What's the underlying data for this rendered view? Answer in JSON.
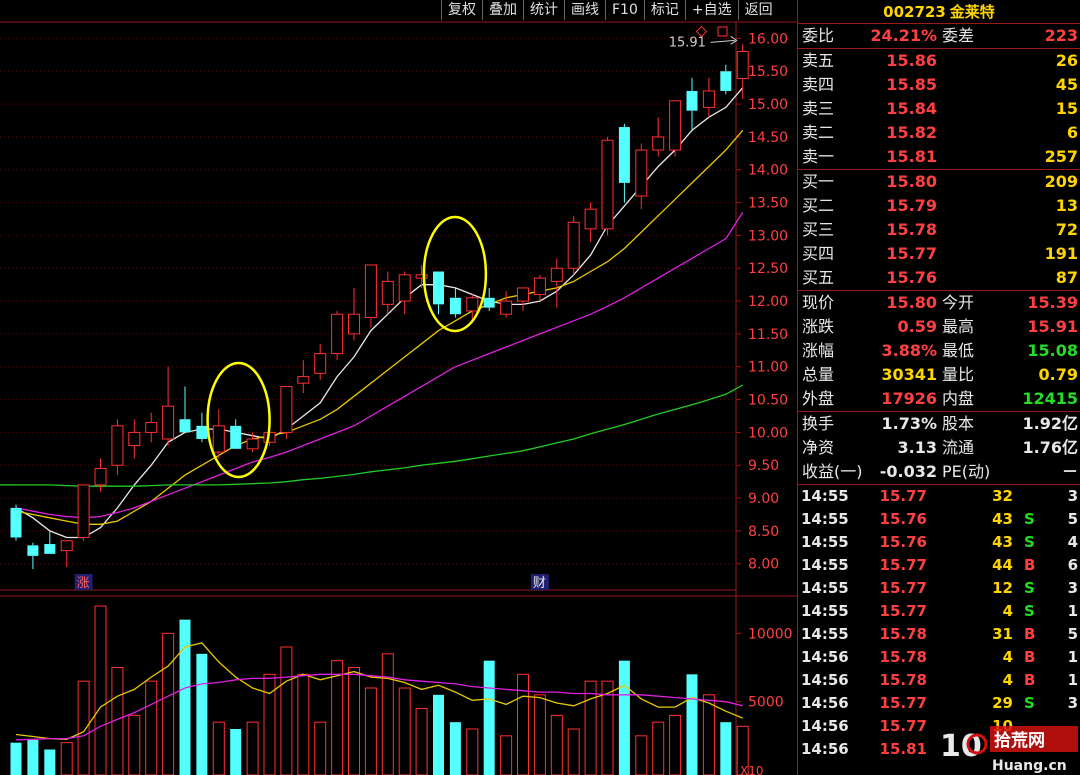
{
  "toolbar": [
    "复权",
    "叠加",
    "统计",
    "画线",
    "F10",
    "标记",
    "+自选",
    "返回"
  ],
  "stock": {
    "code": "002723",
    "name": "金莱特"
  },
  "webi": {
    "label1": "委比",
    "value1": "24.21%",
    "label2": "委差",
    "value2": "223"
  },
  "asks": [
    {
      "label": "卖五",
      "price": "15.86",
      "vol": "26"
    },
    {
      "label": "卖四",
      "price": "15.85",
      "vol": "45"
    },
    {
      "label": "卖三",
      "price": "15.84",
      "vol": "15"
    },
    {
      "label": "卖二",
      "price": "15.82",
      "vol": "6"
    },
    {
      "label": "卖一",
      "price": "15.81",
      "vol": "257"
    }
  ],
  "bids": [
    {
      "label": "买一",
      "price": "15.80",
      "vol": "209"
    },
    {
      "label": "买二",
      "price": "15.79",
      "vol": "13"
    },
    {
      "label": "买三",
      "price": "15.78",
      "vol": "72"
    },
    {
      "label": "买四",
      "price": "15.77",
      "vol": "191"
    },
    {
      "label": "买五",
      "price": "15.76",
      "vol": "87"
    }
  ],
  "quote": [
    {
      "l1": "现价",
      "v1": "15.80",
      "c1": "red",
      "l2": "今开",
      "v2": "15.39",
      "c2": "red"
    },
    {
      "l1": "涨跌",
      "v1": "0.59",
      "c1": "red",
      "l2": "最高",
      "v2": "15.91",
      "c2": "red"
    },
    {
      "l1": "涨幅",
      "v1": "3.88%",
      "c1": "red",
      "l2": "最低",
      "v2": "15.08",
      "c2": "grn"
    },
    {
      "l1": "总量",
      "v1": "30341",
      "c1": "yel",
      "l2": "量比",
      "v2": "0.79",
      "c2": "yel"
    },
    {
      "l1": "外盘",
      "v1": "17926",
      "c1": "red",
      "l2": "内盘",
      "v2": "12415",
      "c2": "grn"
    }
  ],
  "stats": [
    {
      "l1": "换手",
      "v1": "1.73%",
      "l2": "股本",
      "v2": "1.92亿"
    },
    {
      "l1": "净资",
      "v1": "3.13",
      "l2": "流通",
      "v2": "1.76亿"
    },
    {
      "l1": "收益(一)",
      "v1": "-0.032",
      "l2": "PE(动)",
      "v2": "－"
    }
  ],
  "ticks": [
    {
      "time": "14:55",
      "price": "15.77",
      "vol": "32",
      "dir": "",
      "count": "3"
    },
    {
      "time": "14:55",
      "price": "15.76",
      "vol": "43",
      "dir": "S",
      "count": "5"
    },
    {
      "time": "14:55",
      "price": "15.76",
      "vol": "43",
      "dir": "S",
      "count": "4"
    },
    {
      "time": "14:55",
      "price": "15.77",
      "vol": "44",
      "dir": "B",
      "count": "6"
    },
    {
      "time": "14:55",
      "price": "15.77",
      "vol": "12",
      "dir": "S",
      "count": "3"
    },
    {
      "time": "14:55",
      "price": "15.77",
      "vol": "4",
      "dir": "S",
      "count": "1"
    },
    {
      "time": "14:55",
      "price": "15.78",
      "vol": "31",
      "dir": "B",
      "count": "5"
    },
    {
      "time": "14:56",
      "price": "15.78",
      "vol": "4",
      "dir": "B",
      "count": "1"
    },
    {
      "time": "14:56",
      "price": "15.78",
      "vol": "4",
      "dir": "B",
      "count": "1"
    },
    {
      "time": "14:56",
      "price": "15.77",
      "vol": "29",
      "dir": "S",
      "count": "3"
    },
    {
      "time": "14:56",
      "price": "15.77",
      "vol": "10",
      "dir": "",
      "count": ""
    },
    {
      "time": "14:56",
      "price": "15.81",
      "vol": "",
      "dir": "",
      "count": ""
    }
  ],
  "chart_data": {
    "type": "candlestick",
    "price_axis": {
      "ticks": [
        "16.00",
        "15.50",
        "15.00",
        "14.50",
        "14.00",
        "13.50",
        "13.00",
        "12.50",
        "12.00",
        "11.50",
        "11.00",
        "10.50",
        "10.00",
        "9.50",
        "9.00",
        "8.50",
        "8.00"
      ],
      "range": [
        7.6,
        16.25
      ]
    },
    "high_label": "15.91",
    "markers": [
      {
        "text": "涨",
        "index": 4
      },
      {
        "text": "财",
        "index": 31
      }
    ],
    "candles": [
      {
        "o": 8.85,
        "h": 8.9,
        "l": 8.35,
        "c": 8.4
      },
      {
        "o": 8.28,
        "h": 8.32,
        "l": 7.92,
        "c": 8.12
      },
      {
        "o": 8.3,
        "h": 8.5,
        "l": 8.15,
        "c": 8.15
      },
      {
        "o": 8.2,
        "h": 8.35,
        "l": 7.95,
        "c": 8.35
      },
      {
        "o": 8.4,
        "h": 9.2,
        "l": 8.35,
        "c": 9.2
      },
      {
        "o": 9.2,
        "h": 9.6,
        "l": 9.1,
        "c": 9.45
      },
      {
        "o": 9.5,
        "h": 10.2,
        "l": 9.35,
        "c": 10.1
      },
      {
        "o": 9.8,
        "h": 10.2,
        "l": 9.6,
        "c": 10.0
      },
      {
        "o": 10.0,
        "h": 10.3,
        "l": 9.85,
        "c": 10.15
      },
      {
        "o": 9.9,
        "h": 11.0,
        "l": 9.8,
        "c": 10.4
      },
      {
        "o": 10.2,
        "h": 10.7,
        "l": 10.0,
        "c": 10.0
      },
      {
        "o": 10.1,
        "h": 10.3,
        "l": 9.85,
        "c": 9.9
      },
      {
        "o": 9.7,
        "h": 10.35,
        "l": 9.6,
        "c": 10.1
      },
      {
        "o": 10.1,
        "h": 10.2,
        "l": 9.75,
        "c": 9.75
      },
      {
        "o": 9.75,
        "h": 10.0,
        "l": 9.7,
        "c": 9.9
      },
      {
        "o": 9.85,
        "h": 10.3,
        "l": 9.8,
        "c": 10.0
      },
      {
        "o": 10.0,
        "h": 10.7,
        "l": 9.9,
        "c": 10.7
      },
      {
        "o": 10.75,
        "h": 11.1,
        "l": 10.6,
        "c": 10.85
      },
      {
        "o": 10.9,
        "h": 11.35,
        "l": 10.8,
        "c": 11.2
      },
      {
        "o": 11.2,
        "h": 11.85,
        "l": 11.1,
        "c": 11.8
      },
      {
        "o": 11.5,
        "h": 12.2,
        "l": 11.4,
        "c": 11.8
      },
      {
        "o": 11.75,
        "h": 12.5,
        "l": 11.6,
        "c": 12.55
      },
      {
        "o": 11.95,
        "h": 12.45,
        "l": 11.8,
        "c": 12.3
      },
      {
        "o": 12.0,
        "h": 12.45,
        "l": 11.8,
        "c": 12.4
      },
      {
        "o": 12.35,
        "h": 12.55,
        "l": 12.2,
        "c": 12.4
      },
      {
        "o": 12.45,
        "h": 12.45,
        "l": 11.8,
        "c": 11.95
      },
      {
        "o": 12.05,
        "h": 12.2,
        "l": 11.75,
        "c": 11.8
      },
      {
        "o": 11.85,
        "h": 12.1,
        "l": 11.7,
        "c": 12.05
      },
      {
        "o": 12.05,
        "h": 12.2,
        "l": 11.85,
        "c": 11.9
      },
      {
        "o": 11.8,
        "h": 12.15,
        "l": 11.75,
        "c": 12.0
      },
      {
        "o": 12.0,
        "h": 12.2,
        "l": 11.85,
        "c": 12.2
      },
      {
        "o": 12.1,
        "h": 12.4,
        "l": 12.0,
        "c": 12.35
      },
      {
        "o": 12.3,
        "h": 12.65,
        "l": 11.9,
        "c": 12.5
      },
      {
        "o": 12.5,
        "h": 13.3,
        "l": 12.4,
        "c": 13.2
      },
      {
        "o": 13.1,
        "h": 13.5,
        "l": 12.9,
        "c": 13.4
      },
      {
        "o": 13.1,
        "h": 14.5,
        "l": 13.0,
        "c": 14.45
      },
      {
        "o": 14.65,
        "h": 14.7,
        "l": 13.5,
        "c": 13.8
      },
      {
        "o": 13.6,
        "h": 14.4,
        "l": 13.4,
        "c": 14.3
      },
      {
        "o": 14.3,
        "h": 14.8,
        "l": 14.2,
        "c": 14.5
      },
      {
        "o": 14.3,
        "h": 15.05,
        "l": 14.2,
        "c": 15.05
      },
      {
        "o": 15.2,
        "h": 15.4,
        "l": 14.6,
        "c": 14.9
      },
      {
        "o": 14.95,
        "h": 15.4,
        "l": 14.8,
        "c": 15.2
      },
      {
        "o": 15.5,
        "h": 15.6,
        "l": 15.15,
        "c": 15.2
      },
      {
        "o": 15.39,
        "h": 15.91,
        "l": 15.08,
        "c": 15.8
      }
    ],
    "ma_series": [
      {
        "color": "#e8e8e8",
        "period": 5,
        "values": [
          8.85,
          8.7,
          8.5,
          8.4,
          8.4,
          8.55,
          8.85,
          9.2,
          9.5,
          9.85,
          10.0,
          10.05,
          10.05,
          10.0,
          9.95,
          9.9,
          10.05,
          10.25,
          10.45,
          10.85,
          11.15,
          11.55,
          11.8,
          12.05,
          12.25,
          12.25,
          12.2,
          12.1,
          12.0,
          11.95,
          11.95,
          12.0,
          12.15,
          12.4,
          12.7,
          13.15,
          13.45,
          13.75,
          14.05,
          14.3,
          14.6,
          14.8,
          14.95,
          15.25
        ]
      },
      {
        "color": "#e8c800",
        "period": 10,
        "values": [
          8.8,
          8.75,
          8.7,
          8.65,
          8.6,
          8.6,
          8.65,
          8.8,
          8.95,
          9.15,
          9.35,
          9.5,
          9.65,
          9.8,
          9.9,
          9.95,
          10.0,
          10.1,
          10.2,
          10.35,
          10.55,
          10.75,
          10.95,
          11.15,
          11.35,
          11.55,
          11.7,
          11.85,
          11.95,
          12.05,
          12.1,
          12.15,
          12.2,
          12.3,
          12.45,
          12.6,
          12.8,
          13.05,
          13.3,
          13.55,
          13.8,
          14.05,
          14.3,
          14.6
        ]
      },
      {
        "color": "#e020e0",
        "period": 20,
        "values": [
          8.85,
          8.8,
          8.75,
          8.72,
          8.7,
          8.72,
          8.78,
          8.85,
          8.95,
          9.05,
          9.15,
          9.25,
          9.35,
          9.45,
          9.55,
          9.62,
          9.7,
          9.8,
          9.9,
          10.0,
          10.1,
          10.25,
          10.4,
          10.55,
          10.7,
          10.85,
          11.0,
          11.1,
          11.2,
          11.3,
          11.4,
          11.5,
          11.6,
          11.7,
          11.8,
          11.92,
          12.05,
          12.2,
          12.35,
          12.5,
          12.65,
          12.8,
          12.95,
          13.35
        ]
      },
      {
        "color": "#22cc22",
        "period": 60,
        "values": [
          9.2,
          9.2,
          9.2,
          9.19,
          9.18,
          9.18,
          9.18,
          9.18,
          9.19,
          9.2,
          9.2,
          9.2,
          9.2,
          9.21,
          9.22,
          9.23,
          9.25,
          9.28,
          9.3,
          9.33,
          9.36,
          9.4,
          9.43,
          9.46,
          9.5,
          9.53,
          9.56,
          9.6,
          9.64,
          9.68,
          9.72,
          9.78,
          9.84,
          9.9,
          9.98,
          10.05,
          10.12,
          10.2,
          10.28,
          10.35,
          10.42,
          10.5,
          10.58,
          10.72
        ]
      }
    ],
    "volume_axis": {
      "ticks": [
        "10000",
        "5000",
        "X10"
      ],
      "range": [
        0,
        12000
      ]
    },
    "volume": [
      2000,
      2200,
      1500,
      2000,
      6500,
      12000,
      7500,
      4000,
      6500,
      10000,
      11000,
      8500,
      3500,
      3000,
      3500,
      7000,
      9000,
      7000,
      3500,
      8000,
      7500,
      6000,
      8500,
      6000,
      4500,
      5500,
      3500,
      3000,
      8000,
      2500,
      7000,
      5500,
      4000,
      3000,
      6500,
      6500,
      8000,
      2500,
      3500,
      4000,
      7000,
      5500,
      3500,
      3200
    ],
    "volume_ma": [
      {
        "color": "#e8c800",
        "values": [
          2600,
          2450,
          2300,
          2250,
          2800,
          4600,
          5400,
          5900,
          6800,
          7600,
          9000,
          9300,
          7900,
          6800,
          6000,
          5600,
          6500,
          7000,
          6600,
          6900,
          7200,
          6800,
          6700,
          6400,
          5900,
          6200,
          5700,
          5100,
          5200,
          4800,
          5400,
          5300,
          4900,
          4700,
          5200,
          5600,
          6200,
          5200,
          4600,
          4600,
          5300,
          4900,
          4300,
          3800
        ]
      },
      {
        "color": "#e020e0",
        "values": [
          2200,
          2250,
          2300,
          2300,
          2500,
          3200,
          3700,
          4200,
          4800,
          5400,
          6000,
          6300,
          6400,
          6600,
          6700,
          6700,
          6800,
          6900,
          7000,
          7000,
          7000,
          6900,
          6800,
          6600,
          6500,
          6400,
          6300,
          6100,
          6000,
          5900,
          5800,
          5700,
          5700,
          5600,
          5600,
          5500,
          5500,
          5500,
          5400,
          5300,
          5200,
          5100,
          5000,
          4700
        ]
      }
    ]
  }
}
